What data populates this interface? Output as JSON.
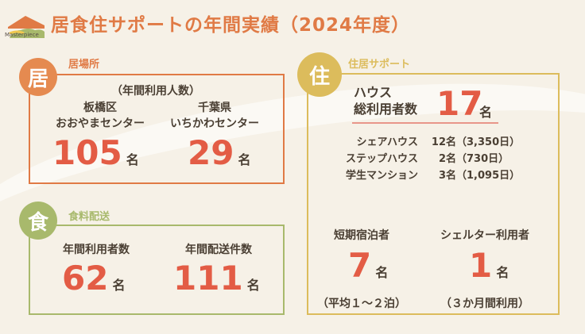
{
  "header": {
    "title": "居食住サポートの年間実績（2024年度）",
    "logo_text": "Masterpiece"
  },
  "colors": {
    "orange": "#e07a45",
    "green": "#a8b96c",
    "gold": "#dcbc5c",
    "number": "#e35c45"
  },
  "housing_place": {
    "icon": "居",
    "label": "居場所",
    "subtitle": "（年間利用人数）",
    "items": [
      {
        "name1": "板橋区",
        "name2": "おおやまセンター",
        "value": "105",
        "unit": "名"
      },
      {
        "name1": "千葉県",
        "name2": "いちかわセンター",
        "value": "29",
        "unit": "名"
      }
    ]
  },
  "food": {
    "icon": "食",
    "label": "食料配送",
    "items": [
      {
        "name": "年間利用者数",
        "value": "62",
        "unit": "名"
      },
      {
        "name": "年間配送件数",
        "value": "111",
        "unit": "名"
      }
    ]
  },
  "residence": {
    "icon": "住",
    "label": "住居サポート",
    "house_line1": "ハウス",
    "house_line2": "総利用者数",
    "total": "17",
    "unit": "名",
    "breakdown": [
      {
        "name": "シェアハウス",
        "count": "12名",
        "days": "（3,350日）"
      },
      {
        "name": "ステップハウス",
        "count": "2名",
        "days": "（730日）"
      },
      {
        "name": "学生マンション",
        "count": "3名",
        "days": "（1,095日）"
      }
    ],
    "short_stay": {
      "name": "短期宿泊者",
      "value": "7",
      "unit": "名",
      "note": "（平均１～２泊）"
    },
    "shelter": {
      "name": "シェルター利用者",
      "value": "1",
      "unit": "名",
      "note": "（３か月間利用）"
    }
  }
}
